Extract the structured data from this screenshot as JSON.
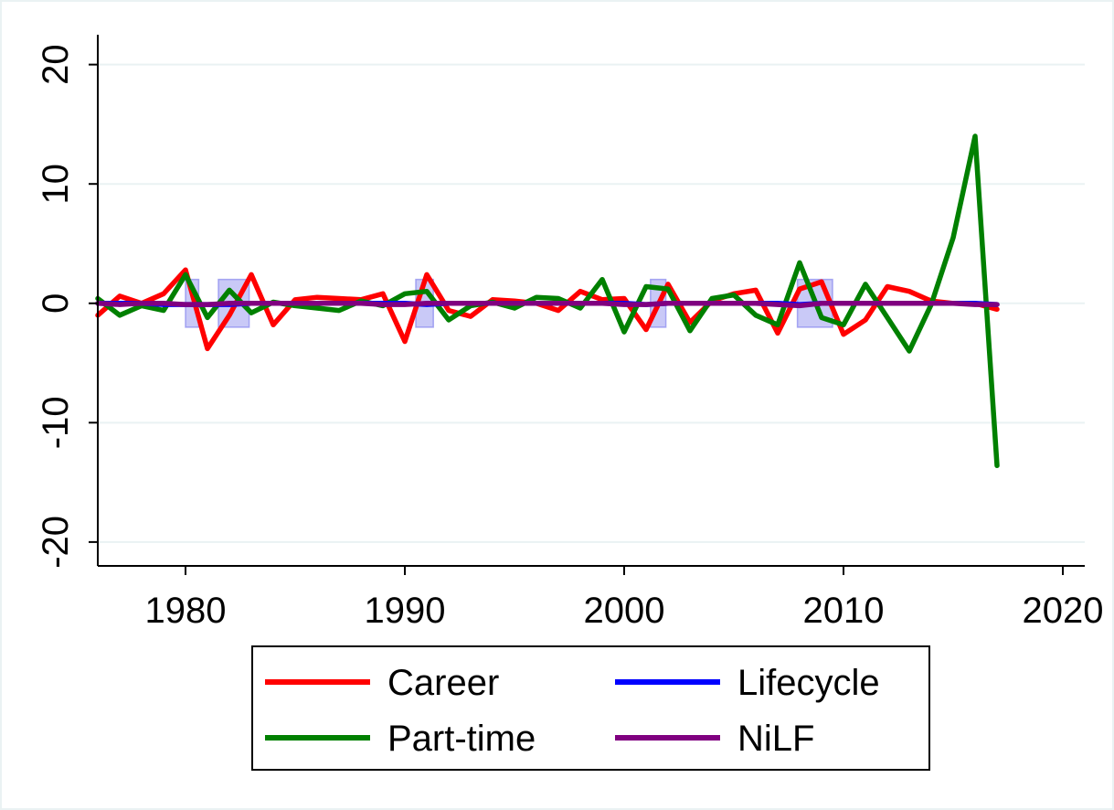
{
  "chart_data": {
    "type": "line",
    "title": "",
    "xlabel": "",
    "ylabel": "",
    "xlim": [
      1976,
      2021
    ],
    "ylim": [
      -22,
      22.5
    ],
    "x_ticks": [
      1980,
      1990,
      2000,
      2010,
      2020
    ],
    "x_tick_labels": [
      "1980",
      "1990",
      "2000",
      "2010",
      "2020"
    ],
    "y_ticks": [
      -20,
      -10,
      0,
      10,
      20
    ],
    "y_tick_labels": [
      "-20",
      "-10",
      "0",
      "10",
      "20"
    ],
    "grid": true,
    "legend_position": "bottom",
    "recession_bands": [
      [
        1980,
        1980.6
      ],
      [
        1981.5,
        1982.9
      ],
      [
        1990.5,
        1991.3
      ],
      [
        2001.2,
        2001.9
      ],
      [
        2007.9,
        2009.5
      ]
    ],
    "recession_band_range": [
      -2,
      2
    ],
    "x": [
      1976,
      1977,
      1978,
      1979,
      1980,
      1981,
      1982,
      1983,
      1984,
      1985,
      1986,
      1987,
      1988,
      1989,
      1990,
      1991,
      1992,
      1993,
      1994,
      1995,
      1996,
      1997,
      1998,
      1999,
      2000,
      2001,
      2002,
      2003,
      2004,
      2005,
      2006,
      2007,
      2008,
      2009,
      2010,
      2011,
      2012,
      2013,
      2014,
      2015,
      2016,
      2017
    ],
    "series": [
      {
        "name": "Career",
        "color": "#ff0000",
        "values": [
          -1.0,
          0.6,
          0.0,
          0.8,
          2.8,
          -3.8,
          -1.0,
          2.4,
          -1.8,
          0.3,
          0.5,
          0.4,
          0.3,
          0.8,
          -3.2,
          2.4,
          -0.6,
          -1.1,
          0.3,
          0.2,
          0.0,
          -0.6,
          1.0,
          0.3,
          0.4,
          -2.2,
          1.6,
          -1.6,
          0.2,
          0.8,
          1.1,
          -2.5,
          1.2,
          1.8,
          -2.6,
          -1.4,
          1.4,
          1.0,
          0.2,
          0.0,
          0.0,
          -0.5
        ]
      },
      {
        "name": "Part-time",
        "color": "#008000",
        "values": [
          0.4,
          -1.0,
          -0.2,
          -0.6,
          2.4,
          -1.2,
          1.1,
          -0.8,
          0.1,
          -0.2,
          -0.4,
          -0.6,
          0.2,
          -0.2,
          0.8,
          1.0,
          -1.4,
          -0.2,
          0.1,
          -0.4,
          0.5,
          0.4,
          -0.4,
          2.0,
          -2.4,
          1.4,
          1.2,
          -2.3,
          0.4,
          0.7,
          -1.0,
          -1.8,
          3.4,
          -1.2,
          -1.8,
          1.6,
          -1.2,
          -4.0,
          -0.1,
          5.5,
          14.0,
          -13.6
        ]
      },
      {
        "name": "Lifecycle",
        "color": "#0000ff",
        "values": [
          0.0,
          0.0,
          0.0,
          -0.1,
          -0.1,
          -0.1,
          -0.1,
          0.0,
          0.0,
          0.0,
          0.0,
          0.0,
          0.0,
          0.0,
          0.0,
          -0.1,
          0.0,
          0.0,
          0.0,
          0.0,
          0.0,
          0.0,
          0.0,
          0.0,
          0.0,
          -0.1,
          0.0,
          0.0,
          0.0,
          0.0,
          0.0,
          0.0,
          -0.1,
          0.0,
          0.0,
          0.0,
          0.0,
          0.0,
          0.0,
          0.0,
          0.0,
          -0.1
        ]
      },
      {
        "name": "NiLF",
        "color": "#800080",
        "values": [
          0.0,
          -0.1,
          0.0,
          0.0,
          -0.1,
          -0.1,
          0.0,
          0.0,
          0.0,
          0.0,
          0.0,
          0.0,
          0.0,
          -0.1,
          -0.1,
          0.0,
          0.0,
          0.0,
          0.0,
          0.0,
          0.0,
          0.0,
          0.0,
          0.0,
          -0.1,
          -0.1,
          0.0,
          0.0,
          0.0,
          0.0,
          0.0,
          -0.1,
          -0.2,
          0.0,
          0.0,
          0.0,
          0.0,
          0.0,
          0.0,
          0.0,
          -0.1,
          -0.1
        ]
      }
    ]
  }
}
